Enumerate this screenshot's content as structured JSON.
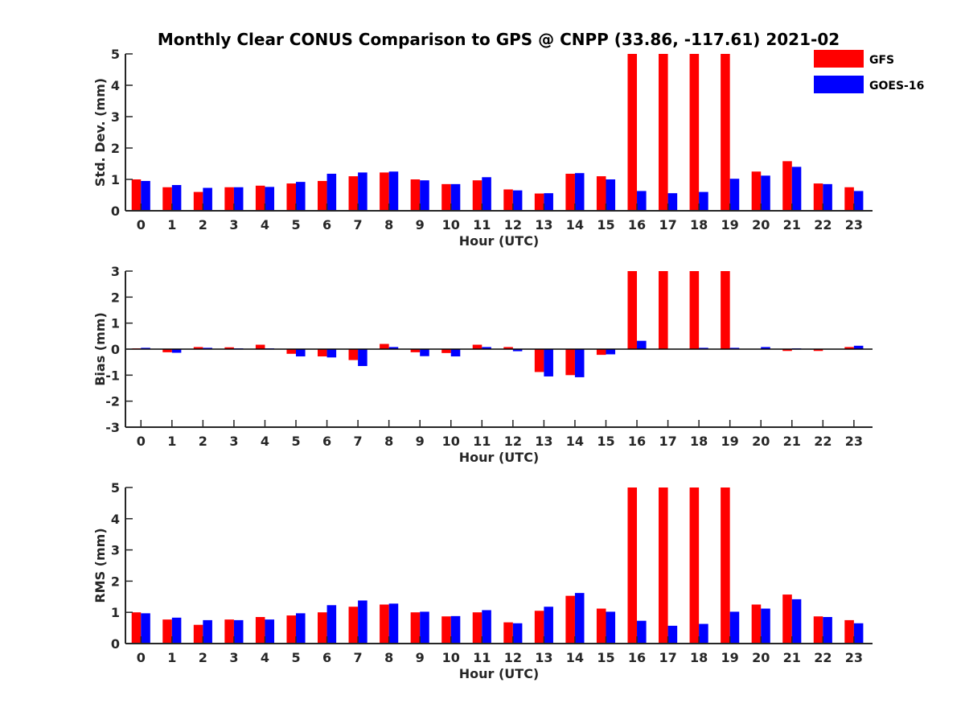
{
  "title": "Monthly Clear CONUS Comparison to GPS @ CNPP (33.86, -117.61) 2021-02",
  "legend": {
    "placement": "top-right",
    "items": [
      {
        "label": "GFS",
        "color": "#ff0000"
      },
      {
        "label": "GOES-16",
        "color": "#0000ff"
      }
    ]
  },
  "chart_data": [
    {
      "type": "bar",
      "ylabel": "Std. Dev. (mm)",
      "xlabel": "Hour (UTC)",
      "ylim": [
        0,
        5
      ],
      "yticks": [
        "0",
        "1",
        "2",
        "3",
        "4",
        "5"
      ],
      "categories": [
        "0",
        "1",
        "2",
        "3",
        "4",
        "5",
        "6",
        "7",
        "8",
        "9",
        "10",
        "11",
        "12",
        "13",
        "14",
        "15",
        "16",
        "17",
        "18",
        "19",
        "20",
        "21",
        "22",
        "23"
      ],
      "series": [
        {
          "name": "GFS",
          "color": "#ff0000",
          "values": [
            1.0,
            0.75,
            0.6,
            0.75,
            0.8,
            0.87,
            0.95,
            1.1,
            1.22,
            1.0,
            0.85,
            0.97,
            0.68,
            0.55,
            1.18,
            1.1,
            5,
            5,
            5,
            5,
            1.25,
            1.58,
            0.87,
            0.75
          ]
        },
        {
          "name": "GOES-16",
          "color": "#0000ff",
          "values": [
            0.95,
            0.82,
            0.73,
            0.75,
            0.76,
            0.92,
            1.18,
            1.22,
            1.25,
            0.97,
            0.85,
            1.07,
            0.65,
            0.56,
            1.2,
            1.0,
            0.63,
            0.56,
            0.6,
            1.02,
            1.12,
            1.4,
            0.85,
            0.63
          ]
        }
      ]
    },
    {
      "type": "bar",
      "ylabel": "Bias (mm)",
      "xlabel": "Hour (UTC)",
      "ylim": [
        -3,
        3
      ],
      "yticks": [
        "-3",
        "-2",
        "-1",
        "0",
        "1",
        "2",
        "3"
      ],
      "categories": [
        "0",
        "1",
        "2",
        "3",
        "4",
        "5",
        "6",
        "7",
        "8",
        "9",
        "10",
        "11",
        "12",
        "13",
        "14",
        "15",
        "16",
        "17",
        "18",
        "19",
        "20",
        "21",
        "22",
        "23"
      ],
      "series": [
        {
          "name": "GFS",
          "color": "#ff0000",
          "values": [
            0.03,
            -0.12,
            0.08,
            0.07,
            0.17,
            -0.18,
            -0.28,
            -0.42,
            0.2,
            -0.12,
            -0.15,
            0.17,
            0.08,
            -0.88,
            -1.0,
            -0.22,
            3,
            3,
            3,
            3,
            0.0,
            -0.07,
            -0.07,
            0.08
          ]
        },
        {
          "name": "GOES-16",
          "color": "#0000ff",
          "values": [
            0.05,
            -0.14,
            0.05,
            0.03,
            0.03,
            -0.28,
            -0.32,
            -0.65,
            0.08,
            -0.27,
            -0.28,
            0.08,
            -0.08,
            -1.05,
            -1.08,
            -0.2,
            0.32,
            0.0,
            0.05,
            0.05,
            0.08,
            0.03,
            0.0,
            0.13
          ]
        }
      ]
    },
    {
      "type": "bar",
      "ylabel": "RMS (mm)",
      "xlabel": "Hour (UTC)",
      "ylim": [
        0,
        5
      ],
      "yticks": [
        "0",
        "1",
        "2",
        "3",
        "4",
        "5"
      ],
      "categories": [
        "0",
        "1",
        "2",
        "3",
        "4",
        "5",
        "6",
        "7",
        "8",
        "9",
        "10",
        "11",
        "12",
        "13",
        "14",
        "15",
        "16",
        "17",
        "18",
        "19",
        "20",
        "21",
        "22",
        "23"
      ],
      "series": [
        {
          "name": "GFS",
          "color": "#ff0000",
          "values": [
            1.0,
            0.77,
            0.6,
            0.77,
            0.85,
            0.9,
            1.0,
            1.18,
            1.25,
            1.0,
            0.87,
            1.0,
            0.68,
            1.05,
            1.53,
            1.12,
            5,
            5,
            5,
            5,
            1.25,
            1.57,
            0.87,
            0.75
          ]
        },
        {
          "name": "GOES-16",
          "color": "#0000ff",
          "values": [
            0.97,
            0.83,
            0.75,
            0.75,
            0.77,
            0.97,
            1.23,
            1.38,
            1.28,
            1.02,
            0.88,
            1.07,
            0.65,
            1.18,
            1.62,
            1.02,
            0.73,
            0.57,
            0.63,
            1.02,
            1.12,
            1.42,
            0.85,
            0.65
          ]
        }
      ]
    }
  ]
}
